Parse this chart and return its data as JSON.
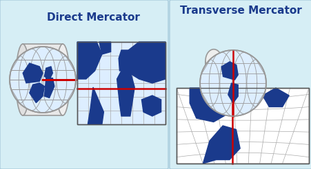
{
  "title_left": "Direct Mercator",
  "title_right": "Transverse Mercator",
  "bg_color_left": "#d6eef5",
  "bg_color_right": "#d6eef5",
  "title_color": "#1a3a8c",
  "title_fontsize": 11,
  "globe_color": "#1a3a8c",
  "land_color": "#1a3a8c",
  "water_color": "#ffffff",
  "cylinder_color": "#e0e0e0",
  "cylinder_edge_color": "#999999",
  "grid_color": "#aaaaaa",
  "meridian_color": "#cc0000",
  "map_bg": "#ffffff",
  "figsize": [
    4.52,
    2.46
  ],
  "dpi": 100
}
